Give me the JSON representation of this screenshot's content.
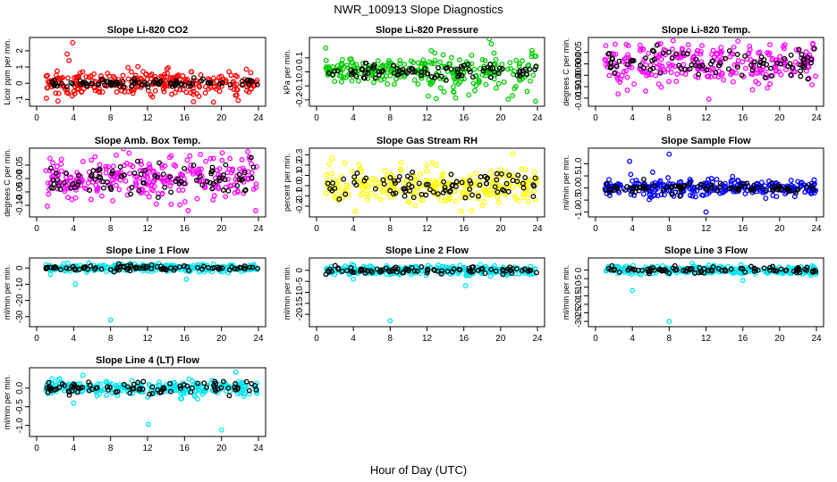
{
  "title": "NWR_100913  Slope Diagnostics",
  "xlabel": "Hour of Day (UTC)",
  "x_ticks": [
    0,
    4,
    8,
    12,
    16,
    20,
    24
  ],
  "chart_data": [
    {
      "type": "scatter",
      "title": "Slope Li-820 CO2",
      "ylabel": "Licor ppm per min.",
      "color": "#ff0000",
      "xlim": [
        0,
        24
      ],
      "ylim": [
        -1.2,
        2.6
      ],
      "y_ticks": [
        -1,
        0,
        1,
        2
      ],
      "spread": 0.42,
      "outliers": [
        {
          "x": 3.9,
          "y": 2.5
        },
        {
          "x": 3.3,
          "y": 1.8
        },
        {
          "x": 2.3,
          "y": -1.1
        },
        {
          "x": 3.5,
          "y": 1.4
        }
      ],
      "black_spread": 0.12
    },
    {
      "type": "scatter",
      "title": "Slope Li-820 Pressure",
      "ylabel": "kPa per min.",
      "color": "#00cc00",
      "xlim": [
        0,
        24
      ],
      "ylim": [
        -0.22,
        0.22
      ],
      "y_ticks": [
        -0.2,
        -0.1,
        0.0,
        0.1
      ],
      "y_tick_labels": [
        "-0.2",
        "-0.1",
        "0.0",
        "0.1"
      ],
      "spread": 0.04,
      "spread_late": 0.08,
      "outliers": [
        {
          "x": 23.8,
          "y": -0.21
        },
        {
          "x": 19.0,
          "y": 0.2
        },
        {
          "x": 1.0,
          "y": 0.17
        }
      ],
      "black_spread": 0.03
    },
    {
      "type": "scatter",
      "title": "Slope Li-820 Temp.",
      "ylabel": "degrees C per min.",
      "color": "#ff00ff",
      "xlim": [
        0,
        24
      ],
      "ylim": [
        -0.017,
        0.01
      ],
      "y_ticks": [
        -0.015,
        -0.01,
        -0.005,
        0.0,
        0.005
      ],
      "y_tick_labels": [
        "-0.015",
        "-0.010",
        "-0.005",
        "0.000",
        "0.005"
      ],
      "spread": 0.0045,
      "outliers": [
        {
          "x": 12.3,
          "y": -0.0155
        },
        {
          "x": 23.6,
          "y": 0.0085
        }
      ],
      "black_spread": 0.003
    },
    {
      "type": "scatter",
      "title": "Slope Amb. Box Temp.",
      "ylabel": "degrees C per min.",
      "color": "#ff00ff",
      "xlim": [
        0,
        24
      ],
      "ylim": [
        -0.13,
        0.1
      ],
      "y_ticks": [
        -0.1,
        -0.05,
        0.0,
        0.05
      ],
      "y_tick_labels": [
        "-0.10",
        "-0.05",
        "0.00",
        "0.05"
      ],
      "spread": 0.04,
      "outliers": [
        {
          "x": 10.0,
          "y": 0.095
        },
        {
          "x": 16.4,
          "y": -0.12
        },
        {
          "x": 23.7,
          "y": -0.12
        }
      ],
      "black_spread": 0.03
    },
    {
      "type": "scatter",
      "title": "Slope Gas Stream RH",
      "ylabel": "percent per min.",
      "color": "#ffff00",
      "xlim": [
        0,
        24
      ],
      "ylim": [
        -0.27,
        0.33
      ],
      "y_ticks": [
        -0.2,
        -0.1,
        0.0,
        0.1,
        0.2,
        0.3
      ],
      "y_tick_labels": [
        "-0.2",
        "-0.1",
        "0.0",
        "0.1",
        "0.2",
        "0.3"
      ],
      "spread": 0.09,
      "outliers": [
        {
          "x": 21.3,
          "y": 0.31
        },
        {
          "x": 4.2,
          "y": -0.25
        }
      ],
      "black_spread": 0.07
    },
    {
      "type": "scatter",
      "title": "Slope Sample Flow",
      "ylabel": "ml/min per min.",
      "color": "#0000ff",
      "xlim": [
        0,
        24
      ],
      "ylim": [
        -1.05,
        1.5
      ],
      "y_ticks": [
        -1.0,
        -0.5,
        0.0,
        0.5,
        1.0
      ],
      "y_tick_labels": [
        "-1.0",
        "-0.5",
        "0.0",
        "0.5",
        "1.0"
      ],
      "spread": 0.17,
      "outliers": [
        {
          "x": 8.0,
          "y": 1.4
        },
        {
          "x": 12.0,
          "y": -1.0
        },
        {
          "x": 3.7,
          "y": 1.1
        },
        {
          "x": 6.2,
          "y": 0.65
        }
      ],
      "black_spread": 0.1
    },
    {
      "type": "scatter",
      "title": "Slope Line 1 Flow",
      "ylabel": "ml/min per min.",
      "color": "#00e5ee",
      "xlim": [
        0,
        24
      ],
      "ylim": [
        -34,
        4
      ],
      "y_ticks": [
        -30,
        -20,
        -10,
        0
      ],
      "y_tick_labels": [
        "-30",
        "-20",
        "-10",
        "0"
      ],
      "spread": 1.2,
      "outliers": [
        {
          "x": 8.0,
          "y": -32
        },
        {
          "x": 4.2,
          "y": -10
        },
        {
          "x": 16.2,
          "y": -7
        },
        {
          "x": 1.5,
          "y": -4
        }
      ],
      "black_spread": 0.8
    },
    {
      "type": "scatter",
      "title": "Slope Line 2 Flow",
      "ylabel": "ml/min per min.",
      "color": "#00e5ee",
      "xlim": [
        0,
        24
      ],
      "ylim": [
        -24,
        4
      ],
      "y_ticks": [
        -20,
        -15,
        -10,
        -5,
        0
      ],
      "y_tick_labels": [
        "-20",
        "-15",
        "-10",
        "-5",
        "0"
      ],
      "spread": 1.0,
      "outliers": [
        {
          "x": 8.0,
          "y": -23
        },
        {
          "x": 16.2,
          "y": -7
        },
        {
          "x": 4.0,
          "y": -4
        }
      ],
      "black_spread": 0.8
    },
    {
      "type": "scatter",
      "title": "Slope Line 3 Flow",
      "ylabel": "ml/min per min.",
      "color": "#00e5ee",
      "xlim": [
        0,
        24
      ],
      "ylim": [
        -31,
        5
      ],
      "y_ticks": [
        -30,
        -25,
        -20,
        -15,
        -10,
        -5,
        0
      ],
      "y_tick_labels": [
        "-30",
        "-25",
        "-20",
        "-15",
        "-10",
        "-5",
        "0"
      ],
      "spread": 1.1,
      "outliers": [
        {
          "x": 8.0,
          "y": -30
        },
        {
          "x": 4.0,
          "y": -12
        },
        {
          "x": 16.0,
          "y": -6
        },
        {
          "x": 10.5,
          "y": 4
        }
      ],
      "black_spread": 0.9
    },
    {
      "type": "scatter",
      "title": "Slope Line 4 (LT) Flow",
      "ylabel": "ml/min per min.",
      "color": "#00e5ee",
      "xlim": [
        0,
        24
      ],
      "ylim": [
        -1.2,
        0.45
      ],
      "y_ticks": [
        -1.0,
        -0.5,
        0.0
      ],
      "y_tick_labels": [
        "-1.0",
        "-0.5",
        "0.0"
      ],
      "spread": 0.1,
      "outliers": [
        {
          "x": 12.1,
          "y": -0.97
        },
        {
          "x": 20.0,
          "y": -1.12
        },
        {
          "x": 5.0,
          "y": 0.34
        },
        {
          "x": 4.0,
          "y": -0.4
        }
      ],
      "black_spread": 0.09
    }
  ]
}
